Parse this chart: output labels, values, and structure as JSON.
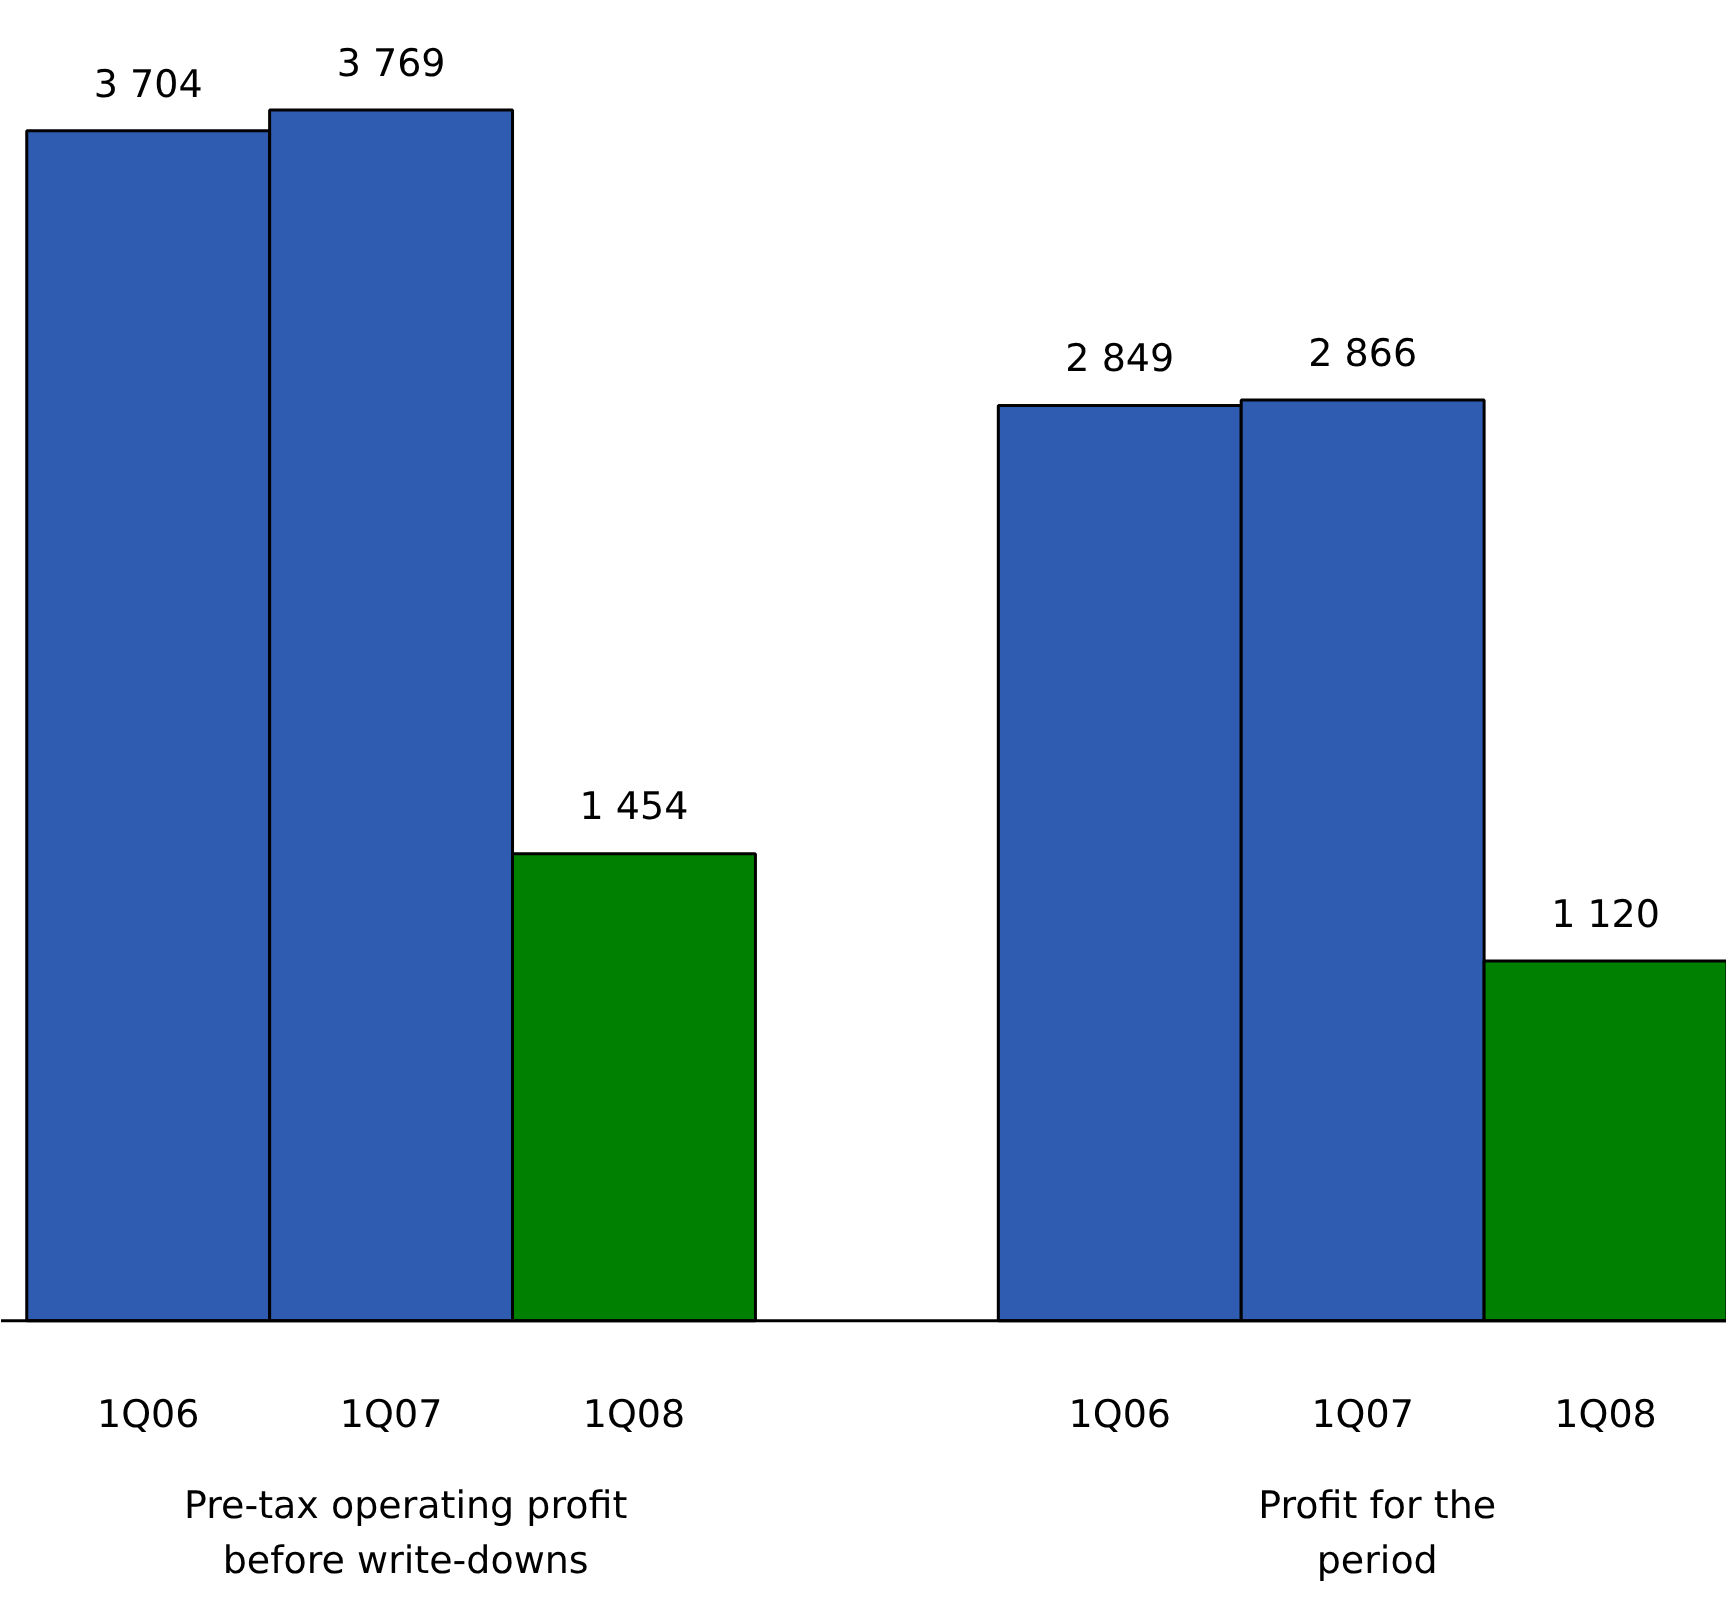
{
  "chart_data": {
    "type": "bar",
    "categories": [
      "1Q06",
      "1Q07",
      "1Q08",
      null,
      "1Q06",
      "1Q07",
      "1Q08"
    ],
    "values": [
      3704,
      3769,
      1454,
      null,
      2849,
      2866,
      1120
    ],
    "colors": [
      "#2f5cb0",
      "#2f5cb0",
      "#008000",
      null,
      "#2f5cb0",
      "#2f5cb0",
      "#008000"
    ],
    "value_labels": [
      "3 704",
      "3 769",
      "1 454",
      null,
      "2 849",
      "2 866",
      "1 120"
    ],
    "annotations": [
      "Pre-tax operating profit\nbefore write-downs",
      "Profit for the\nperiod"
    ]
  }
}
